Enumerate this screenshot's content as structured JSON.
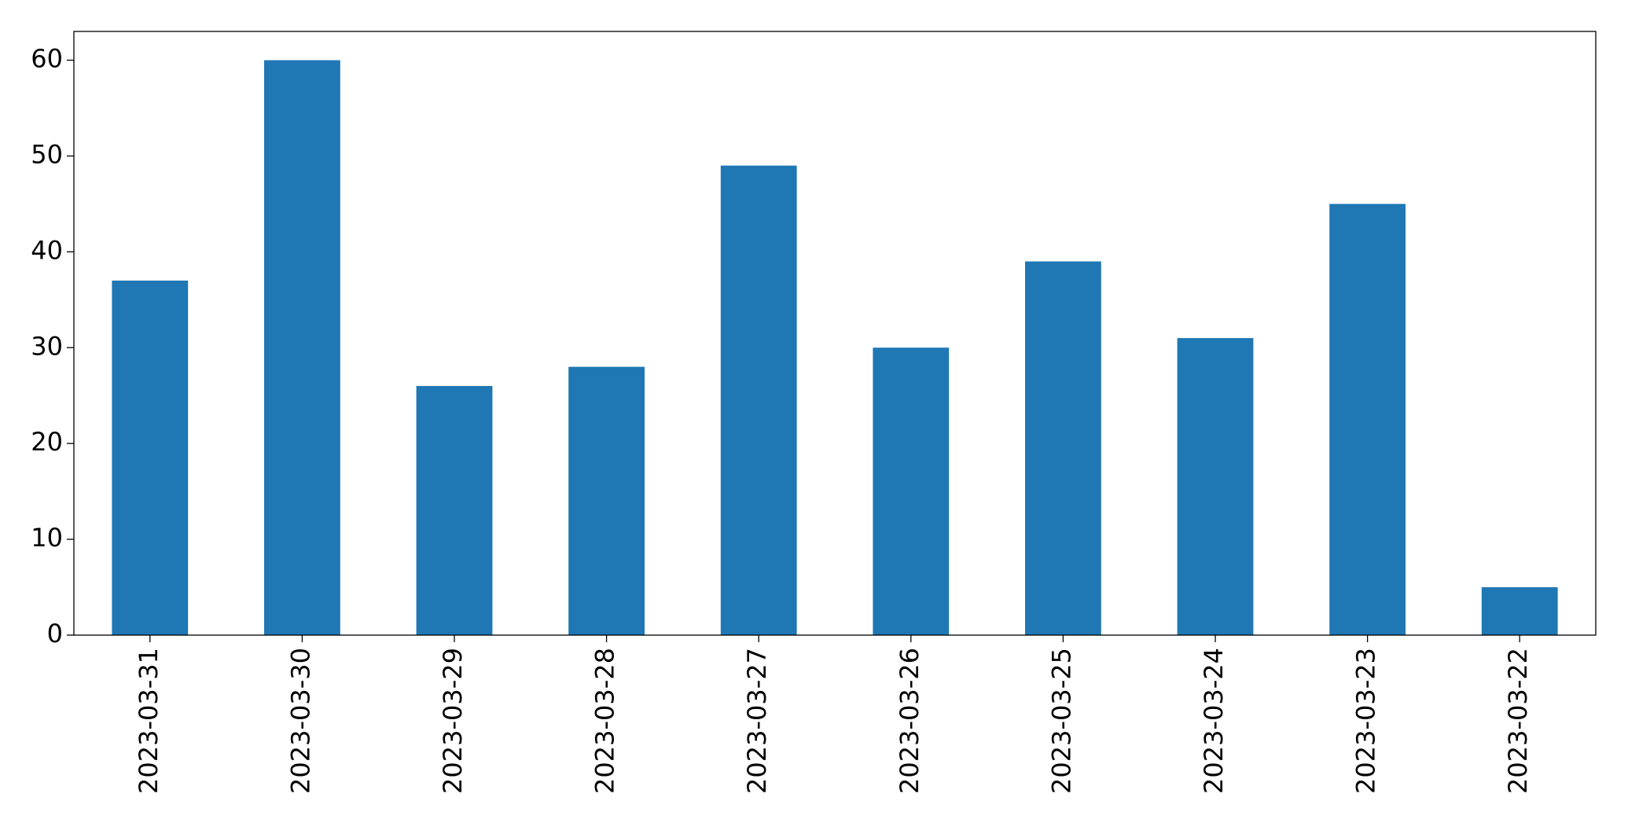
{
  "chart_data": {
    "type": "bar",
    "categories": [
      "2023-03-31",
      "2023-03-30",
      "2023-03-29",
      "2023-03-28",
      "2023-03-27",
      "2023-03-26",
      "2023-03-25",
      "2023-03-24",
      "2023-03-23",
      "2023-03-22"
    ],
    "values": [
      37,
      60,
      26,
      28,
      49,
      30,
      39,
      31,
      45,
      5
    ],
    "color": "#1f77b4",
    "ylim": [
      0,
      63
    ],
    "yticks": [
      0,
      10,
      20,
      30,
      40,
      50,
      60
    ],
    "grid": false
  }
}
